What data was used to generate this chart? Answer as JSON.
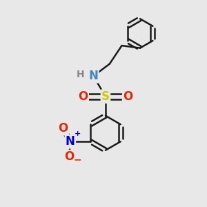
{
  "background_color": "#e8e8e8",
  "bond_color": "#1a1a1a",
  "bond_width": 1.8,
  "S_color": "#cccc00",
  "N_color": "#4488bb",
  "O_color": "#ee2200",
  "H_color": "#888888",
  "N_nitro_color": "#0000dd",
  "O_nitro_color": "#ee2200",
  "font_size": 11,
  "fig_size": [
    3.0,
    3.0
  ],
  "dpi": 100,
  "xlim": [
    0,
    10
  ],
  "ylim": [
    0,
    10
  ]
}
